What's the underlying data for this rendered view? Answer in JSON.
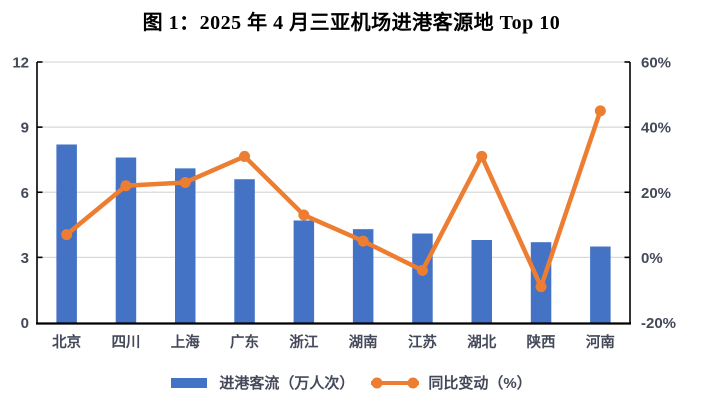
{
  "title": "图 1：2025 年 4 月三亚机场进港客源地 Top 10",
  "legend": {
    "bar_label": "进港客流（万人次）",
    "line_label": "同比变动（%）"
  },
  "colors": {
    "bar": "#4472C4",
    "line": "#ED7D31",
    "axis_label": "#44495A",
    "gridline": "#D9D9D9",
    "axis_line": "#000000"
  },
  "chart_data": {
    "type": "bar",
    "subtype": "bar-line-combo",
    "title": "图 1：2025 年 4 月三亚机场进港客源地 Top 10",
    "categories": [
      "北京",
      "四川",
      "上海",
      "广东",
      "浙江",
      "湖南",
      "江苏",
      "湖北",
      "陕西",
      "河南"
    ],
    "series": [
      {
        "name": "进港客流（万人次）",
        "type": "bar",
        "axis": "left",
        "values": [
          8.2,
          7.6,
          7.1,
          6.6,
          4.7,
          4.3,
          4.1,
          3.8,
          3.7,
          3.5
        ]
      },
      {
        "name": "同比变动（%）",
        "type": "line",
        "axis": "right",
        "values": [
          7,
          22,
          23,
          31,
          13,
          5,
          -4,
          31,
          -9,
          45
        ]
      }
    ],
    "left_axis": {
      "min": 0,
      "max": 12,
      "tick_values": [
        0,
        3,
        6,
        9,
        12
      ],
      "labels": [
        "0",
        "3",
        "6",
        "9",
        "12"
      ]
    },
    "right_axis": {
      "min": -20,
      "max": 60,
      "tick_values": [
        -20,
        0,
        20,
        40,
        60
      ],
      "labels": [
        "-20%",
        "0%",
        "20%",
        "40%",
        "60%"
      ]
    },
    "grid": "horizontal",
    "legend_position": "bottom"
  }
}
